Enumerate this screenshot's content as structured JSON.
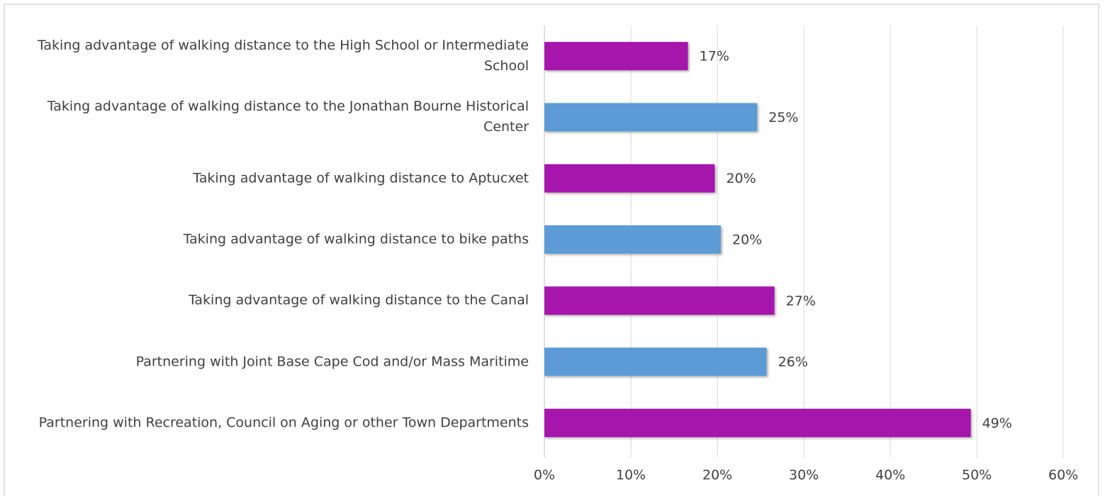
{
  "chart_data": {
    "type": "hbar",
    "categories": [
      "Taking advantage of walking distance to the High School or Intermediate School",
      "Taking advantage of walking distance to the Jonathan Bourne Historical Center",
      "Taking advantage of walking distance to Aptucxet",
      "Taking advantage of walking distance to bike paths",
      "Taking advantage of walking distance to the Canal",
      "Partnering with Joint Base Cape Cod and/or Mass Maritime",
      "Partnering with Recreation, Council on Aging or other Town Departments"
    ],
    "values": [
      16.6,
      24.6,
      19.7,
      20.4,
      26.6,
      25.7,
      49.3
    ],
    "value_labels": [
      "17%",
      "25%",
      "20%",
      "20%",
      "27%",
      "26%",
      "49%"
    ],
    "colors": [
      "#a612ad",
      "#5b9bd5",
      "#a612ad",
      "#5b9bd5",
      "#a612ad",
      "#5b9bd5",
      "#a612ad"
    ],
    "xlim": [
      0,
      60
    ],
    "xticks": [
      {
        "value": 0,
        "label": "0%"
      },
      {
        "value": 10,
        "label": "10%"
      },
      {
        "value": 20,
        "label": "20%"
      },
      {
        "value": 30,
        "label": "30%"
      },
      {
        "value": 40,
        "label": "40%"
      },
      {
        "value": 50,
        "label": "50%"
      },
      {
        "value": 60,
        "label": "60%"
      }
    ],
    "grid": true
  }
}
